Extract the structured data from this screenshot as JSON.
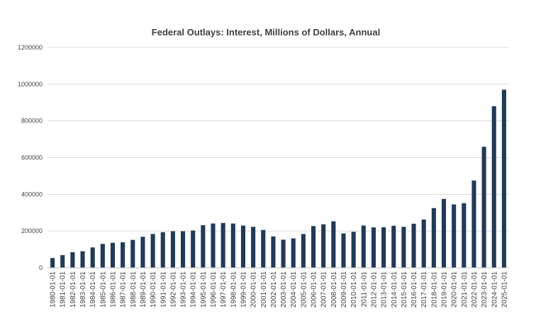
{
  "chart_data": {
    "type": "bar",
    "title": "Federal Outlays: Interest, Millions of Dollars, Annual",
    "xlabel": "",
    "ylabel": "",
    "ylim": [
      0,
      1200000
    ],
    "yticks": [
      "0",
      "200000",
      "400000",
      "600000",
      "800000",
      "1000000",
      "1200000"
    ],
    "grid": true,
    "legend": "none",
    "bar_color": "#1f3a5a",
    "categories": [
      "1980-01-01",
      "1981-01-01",
      "1982-01-01",
      "1983-01-01",
      "1984-01-01",
      "1985-01-01",
      "1986-01-01",
      "1987-01-01",
      "1988-01-01",
      "1989-01-01",
      "1990-01-01",
      "1991-01-01",
      "1992-01-01",
      "1993-01-01",
      "1994-01-01",
      "1995-01-01",
      "1996-01-01",
      "1997-01-01",
      "1998-01-01",
      "1999-01-01",
      "2000-01-01",
      "2001-01-01",
      "2002-01-01",
      "2003-01-01",
      "2004-01-01",
      "2005-01-01",
      "2006-01-01",
      "2007-01-01",
      "2008-01-01",
      "2009-01-01",
      "2010-01-01",
      "2011-01-01",
      "2012-01-01",
      "2013-01-01",
      "2014-01-01",
      "2015-01-01",
      "2016-01-01",
      "2017-01-01",
      "2018-01-01",
      "2019-01-01",
      "2020-01-01",
      "2021-01-01",
      "2022-01-01",
      "2023-01-01",
      "2024-01-01",
      "2025-01-01"
    ],
    "values": [
      53000,
      69000,
      85000,
      90000,
      111000,
      130000,
      136000,
      139000,
      152000,
      169000,
      184000,
      194000,
      199000,
      199000,
      203000,
      232000,
      241000,
      244000,
      241000,
      230000,
      223000,
      206000,
      171000,
      153000,
      160000,
      184000,
      227000,
      237000,
      253000,
      187000,
      196000,
      230000,
      220000,
      221000,
      229000,
      223000,
      240000,
      263000,
      325000,
      375000,
      345000,
      352000,
      475000,
      659000,
      880000,
      970000
    ]
  }
}
